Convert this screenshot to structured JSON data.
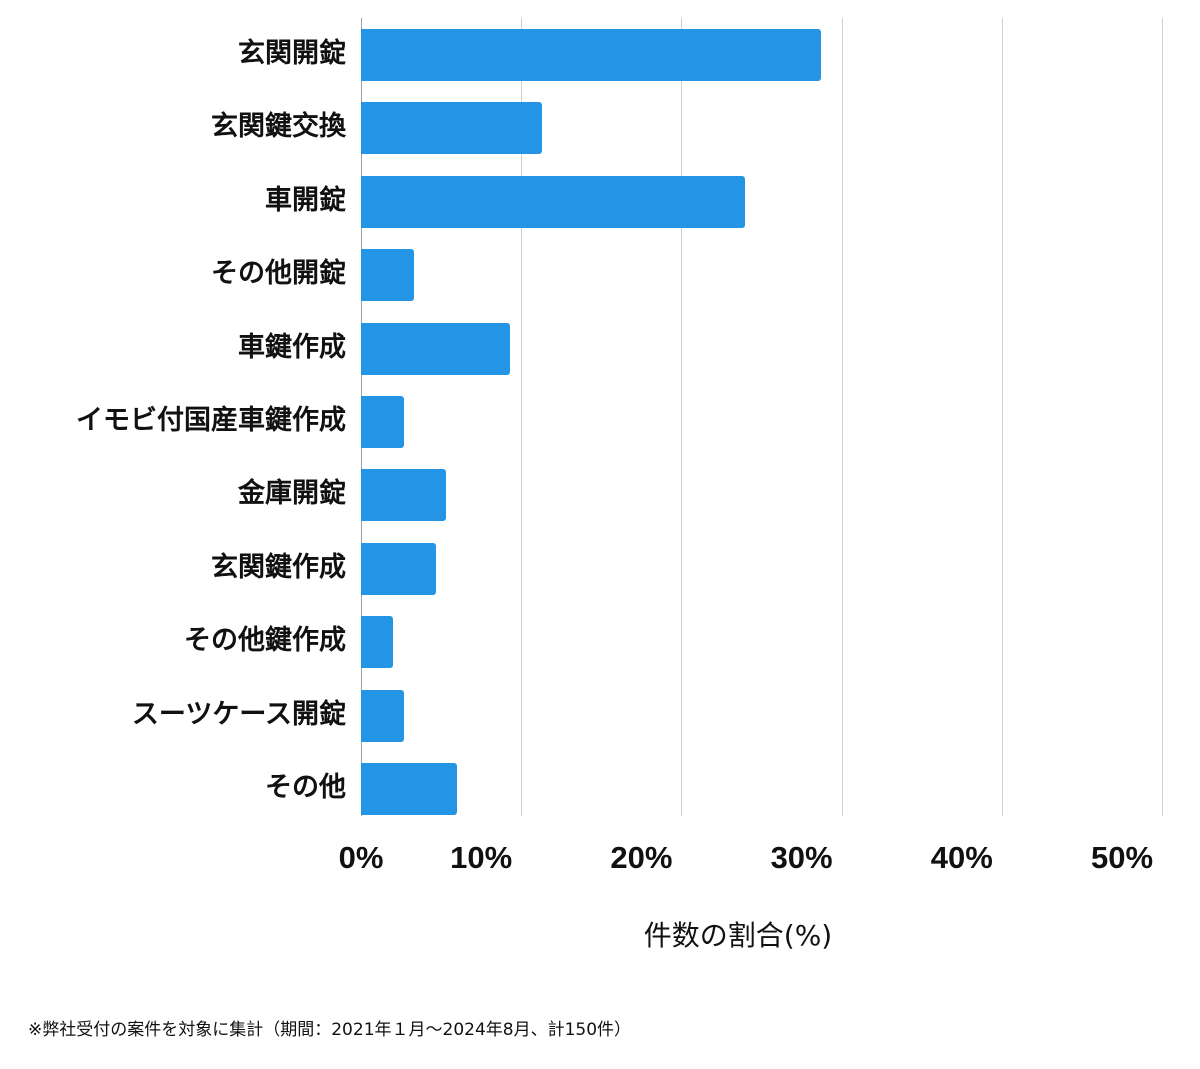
{
  "chart_data": {
    "type": "bar",
    "orientation": "horizontal",
    "title": "",
    "xlabel": "件数の割合(%)",
    "ylabel": "",
    "xlim": [
      0,
      50
    ],
    "x_ticks": [
      "0%",
      "10%",
      "20%",
      "30%",
      "40%",
      "50%"
    ],
    "grid": true,
    "legend": null,
    "color": "#2494e4",
    "categories": [
      "玄関開錠",
      "玄関鍵交換",
      "車開錠",
      "その他開錠",
      "車鍵作成",
      "イモビ付国産車鍵作成",
      "金庫開錠",
      "玄関鍵作成",
      "その他鍵作成",
      "スーツケース開錠",
      "その他"
    ],
    "values": [
      28.7,
      11.3,
      24.0,
      3.3,
      9.3,
      2.7,
      5.3,
      4.7,
      2.0,
      2.7,
      6.0
    ]
  },
  "footnote": "※弊社受付の案件を対象に集計（期間：2021年１月～2024年8月、計150件）"
}
